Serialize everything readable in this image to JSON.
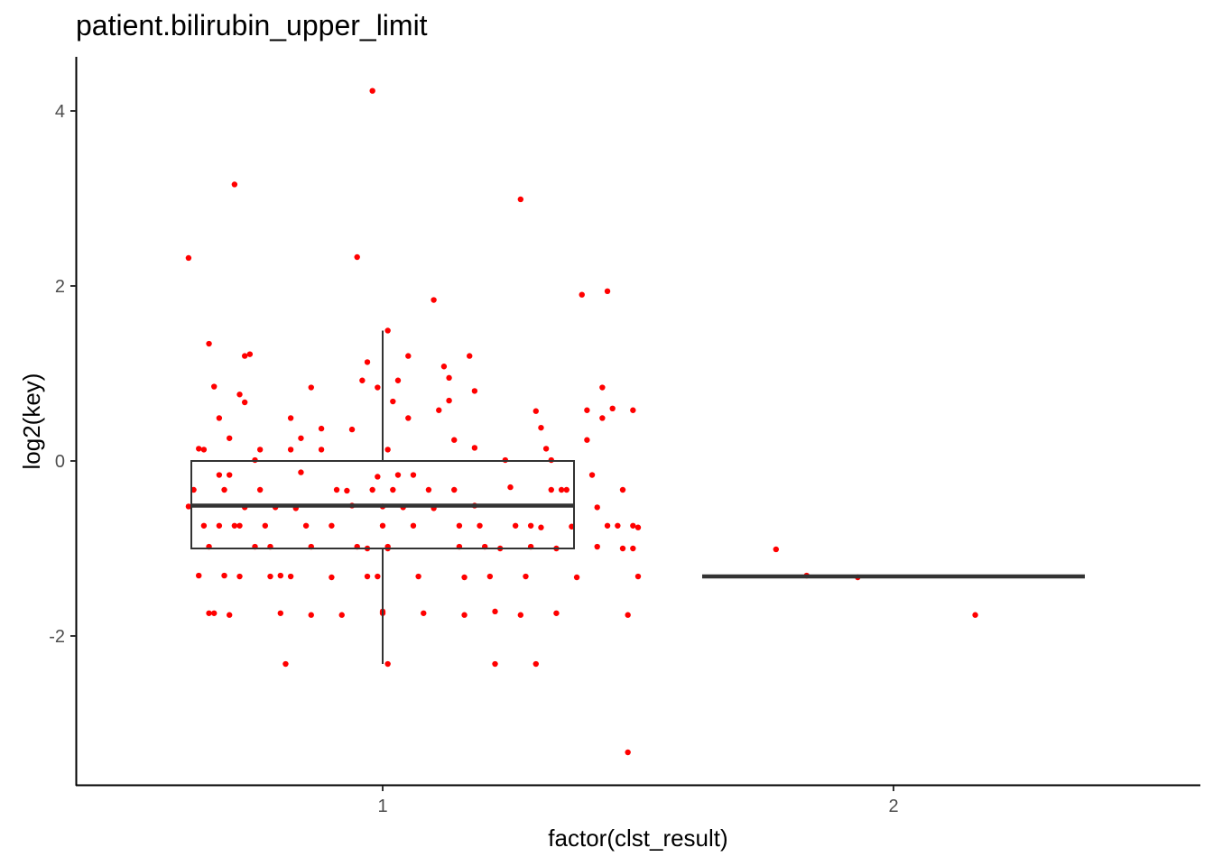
{
  "chart_data": {
    "type": "box",
    "title": "patient.bilirubin_upper_limit",
    "xlabel": "factor(clst_result)",
    "ylabel": "log2(key)",
    "categories": [
      "1",
      "2"
    ],
    "ylim": [
      -3.5,
      4.4
    ],
    "yticks": [
      4,
      2,
      0,
      -2
    ],
    "ytick_labels": [
      "4",
      "2",
      "0",
      "-2"
    ],
    "grid": false,
    "colors": {
      "points": "#ff0000",
      "box": "#333333",
      "axis": "#000000"
    },
    "boxes": [
      {
        "category": "1",
        "min": -2.32,
        "q1": -1.0,
        "median": -0.51,
        "q3": 0.0,
        "max": 1.49
      },
      {
        "category": "2",
        "min": -1.32,
        "q1": -1.32,
        "median": -1.32,
        "q3": -1.32,
        "max": -1.32
      }
    ],
    "points": [
      [
        0.62,
        2.32
      ],
      [
        0.64,
        0.14
      ],
      [
        0.65,
        0.13
      ],
      [
        0.63,
        -0.33
      ],
      [
        0.66,
        1.34
      ],
      [
        0.67,
        0.85
      ],
      [
        0.68,
        0.49
      ],
      [
        0.7,
        0.26
      ],
      [
        0.62,
        -0.52
      ],
      [
        0.65,
        -0.74
      ],
      [
        0.66,
        -0.98
      ],
      [
        0.64,
        -1.31
      ],
      [
        0.66,
        -1.74
      ],
      [
        0.67,
        -1.74
      ],
      [
        0.69,
        -1.31
      ],
      [
        0.72,
        -1.32
      ],
      [
        0.7,
        -1.76
      ],
      [
        0.68,
        -0.16
      ],
      [
        0.71,
        -0.74
      ],
      [
        0.72,
        -0.74
      ],
      [
        0.73,
        -0.53
      ],
      [
        0.69,
        -0.33
      ],
      [
        0.7,
        -0.16
      ],
      [
        0.71,
        3.16
      ],
      [
        0.73,
        1.2
      ],
      [
        0.74,
        1.22
      ],
      [
        0.72,
        0.76
      ],
      [
        0.73,
        0.67
      ],
      [
        0.75,
        0.01
      ],
      [
        0.76,
        0.13
      ],
      [
        0.76,
        -0.33
      ],
      [
        0.77,
        -0.74
      ],
      [
        0.78,
        -0.98
      ],
      [
        0.78,
        -1.32
      ],
      [
        0.8,
        -1.31
      ],
      [
        0.8,
        -1.74
      ],
      [
        0.81,
        -2.32
      ],
      [
        0.82,
        0.49
      ],
      [
        0.82,
        0.13
      ],
      [
        0.84,
        -0.13
      ],
      [
        0.84,
        0.26
      ],
      [
        0.83,
        -0.54
      ],
      [
        0.82,
        -1.32
      ],
      [
        0.86,
        -1.76
      ],
      [
        0.86,
        -0.98
      ],
      [
        0.86,
        0.84
      ],
      [
        0.88,
        0.37
      ],
      [
        0.88,
        0.13
      ],
      [
        0.9,
        -0.74
      ],
      [
        0.9,
        -1.33
      ],
      [
        0.92,
        -1.76
      ],
      [
        0.93,
        -0.34
      ],
      [
        0.94,
        0.36
      ],
      [
        0.94,
        -0.51
      ],
      [
        0.95,
        2.33
      ],
      [
        0.96,
        0.92
      ],
      [
        0.97,
        1.13
      ],
      [
        0.97,
        -1.32
      ],
      [
        0.97,
        -1.0
      ],
      [
        0.98,
        -0.33
      ],
      [
        0.99,
        -0.18
      ],
      [
        1.0,
        -0.74
      ],
      [
        1.01,
        0.13
      ],
      [
        0.99,
        0.84
      ],
      [
        1.01,
        1.49
      ],
      [
        1.02,
        0.68
      ],
      [
        1.03,
        0.92
      ],
      [
        1.0,
        -0.52
      ],
      [
        1.01,
        -1.0
      ],
      [
        0.99,
        -1.32
      ],
      [
        1.0,
        -1.74
      ],
      [
        1.0,
        -1.72
      ],
      [
        1.01,
        -2.32
      ],
      [
        0.98,
        4.23
      ],
      [
        1.01,
        -0.98
      ],
      [
        1.02,
        -0.33
      ],
      [
        1.03,
        -0.16
      ],
      [
        1.04,
        -0.53
      ],
      [
        1.05,
        1.2
      ],
      [
        1.05,
        0.49
      ],
      [
        1.06,
        -0.74
      ],
      [
        1.07,
        -1.32
      ],
      [
        1.08,
        -1.74
      ],
      [
        1.09,
        -0.33
      ],
      [
        1.1,
        -0.54
      ],
      [
        1.1,
        1.84
      ],
      [
        1.11,
        0.58
      ],
      [
        1.12,
        1.08
      ],
      [
        1.13,
        0.95
      ],
      [
        1.13,
        0.69
      ],
      [
        1.14,
        0.24
      ],
      [
        1.14,
        -0.33
      ],
      [
        1.15,
        -0.74
      ],
      [
        1.16,
        -1.33
      ],
      [
        1.16,
        -1.76
      ],
      [
        1.17,
        1.2
      ],
      [
        1.18,
        0.8
      ],
      [
        1.18,
        0.15
      ],
      [
        1.18,
        -0.51
      ],
      [
        1.19,
        -0.74
      ],
      [
        1.2,
        -0.98
      ],
      [
        1.21,
        -1.32
      ],
      [
        1.22,
        -1.72
      ],
      [
        1.22,
        -2.32
      ],
      [
        1.24,
        0.01
      ],
      [
        1.25,
        -0.3
      ],
      [
        1.27,
        -1.76
      ],
      [
        1.28,
        -1.32
      ],
      [
        1.29,
        -0.98
      ],
      [
        1.29,
        -0.74
      ],
      [
        1.3,
        0.57
      ],
      [
        1.31,
        0.38
      ],
      [
        1.32,
        0.14
      ],
      [
        1.27,
        2.99
      ],
      [
        1.33,
        0.01
      ],
      [
        1.33,
        -0.33
      ],
      [
        1.34,
        -1.0
      ],
      [
        1.34,
        -1.74
      ],
      [
        1.3,
        -2.32
      ],
      [
        1.31,
        -0.76
      ],
      [
        1.36,
        -0.33
      ],
      [
        1.37,
        -0.75
      ],
      [
        1.38,
        -1.33
      ],
      [
        1.39,
        1.9
      ],
      [
        1.4,
        0.24
      ],
      [
        1.4,
        0.58
      ],
      [
        1.41,
        -0.16
      ],
      [
        1.42,
        -0.53
      ],
      [
        1.42,
        -0.98
      ],
      [
        1.43,
        0.84
      ],
      [
        1.43,
        0.49
      ],
      [
        1.44,
        1.94
      ],
      [
        1.45,
        0.6
      ],
      [
        1.46,
        -0.74
      ],
      [
        1.47,
        -0.33
      ],
      [
        1.48,
        -1.76
      ],
      [
        1.48,
        -3.33
      ],
      [
        1.49,
        0.58
      ],
      [
        1.49,
        -0.74
      ],
      [
        1.49,
        -1.0
      ],
      [
        1.5,
        -1.32
      ],
      [
        1.5,
        -0.76
      ],
      [
        1.47,
        -1.0
      ],
      [
        1.44,
        -0.74
      ],
      [
        1.35,
        -0.33
      ],
      [
        1.26,
        -0.74
      ],
      [
        1.23,
        -1.0
      ],
      [
        1.15,
        -0.98
      ],
      [
        1.06,
        -0.16
      ],
      [
        0.95,
        -0.98
      ],
      [
        0.91,
        -0.33
      ],
      [
        0.85,
        -0.74
      ],
      [
        0.79,
        -0.53
      ],
      [
        0.75,
        -0.98
      ],
      [
        0.68,
        -0.74
      ],
      [
        1.77,
        -1.01
      ],
      [
        1.83,
        -1.31
      ],
      [
        1.93,
        -1.33
      ],
      [
        2.16,
        -1.76
      ]
    ]
  }
}
